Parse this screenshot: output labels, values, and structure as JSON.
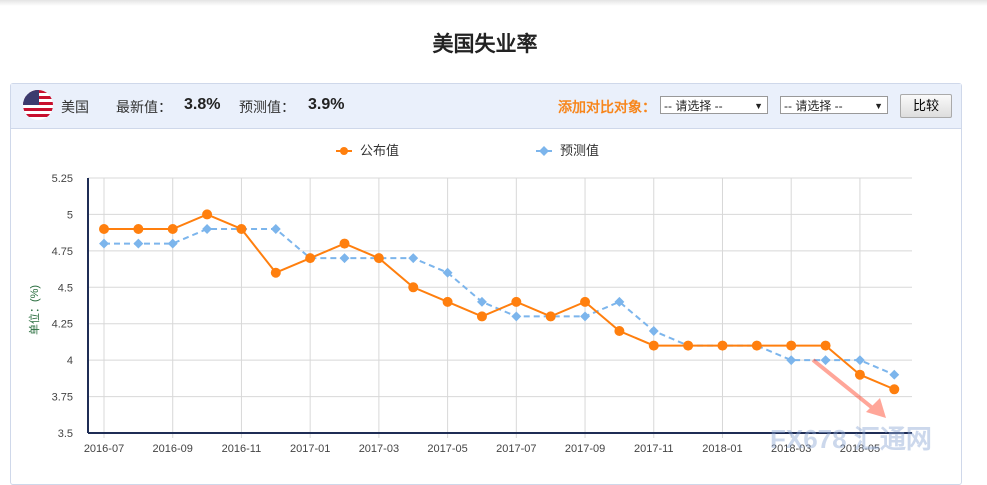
{
  "page_title": "美国失业率",
  "header": {
    "country": "美国",
    "latest_label": "最新值：",
    "latest_value": "3.8%",
    "forecast_label": "预测值：",
    "forecast_value": "3.9%",
    "add_compare_label": "添加对比对象：",
    "select1": "-- 请选择 --",
    "select2": "-- 请选择 --",
    "compare_button": "比较"
  },
  "watermark": "FX678 汇通网",
  "chart_data": {
    "type": "line",
    "title": "美国失业率",
    "ylabel": "单位：(%)",
    "ylim": [
      3.5,
      5.25
    ],
    "yticks": [
      "5.25",
      "5",
      "4.75",
      "4.5",
      "4.25",
      "4",
      "3.75",
      "3.5"
    ],
    "x": [
      "2016-07",
      "2016-08",
      "2016-09",
      "2016-10",
      "2016-11",
      "2016-12",
      "2017-01",
      "2017-02",
      "2017-03",
      "2017-04",
      "2017-05",
      "2017-06",
      "2017-07",
      "2017-08",
      "2017-09",
      "2017-10",
      "2017-11",
      "2017-12",
      "2018-01",
      "2018-02",
      "2018-03",
      "2018-04",
      "2018-05",
      "2018-06"
    ],
    "xticks": [
      "2016-07",
      "2016-09",
      "2016-11",
      "2017-01",
      "2017-03",
      "2017-05",
      "2017-07",
      "2017-09",
      "2017-11",
      "2018-01",
      "2018-03",
      "2018-05"
    ],
    "legend_position": "top",
    "series": [
      {
        "name": "公布值",
        "color": "#ff7f0e",
        "values": [
          4.9,
          4.9,
          4.9,
          5.0,
          4.9,
          4.6,
          4.7,
          4.8,
          4.7,
          4.5,
          4.4,
          4.3,
          4.4,
          4.3,
          4.4,
          4.2,
          4.1,
          4.1,
          4.1,
          4.1,
          4.1,
          4.1,
          3.9,
          3.8
        ]
      },
      {
        "name": "预测值",
        "color": "#7cb5ec",
        "values": [
          4.8,
          4.8,
          4.8,
          4.9,
          4.9,
          4.9,
          4.7,
          4.7,
          4.7,
          4.7,
          4.6,
          4.4,
          4.3,
          4.3,
          4.3,
          4.4,
          4.2,
          4.1,
          4.1,
          4.1,
          4.0,
          4.0,
          4.0,
          3.9
        ]
      }
    ]
  }
}
